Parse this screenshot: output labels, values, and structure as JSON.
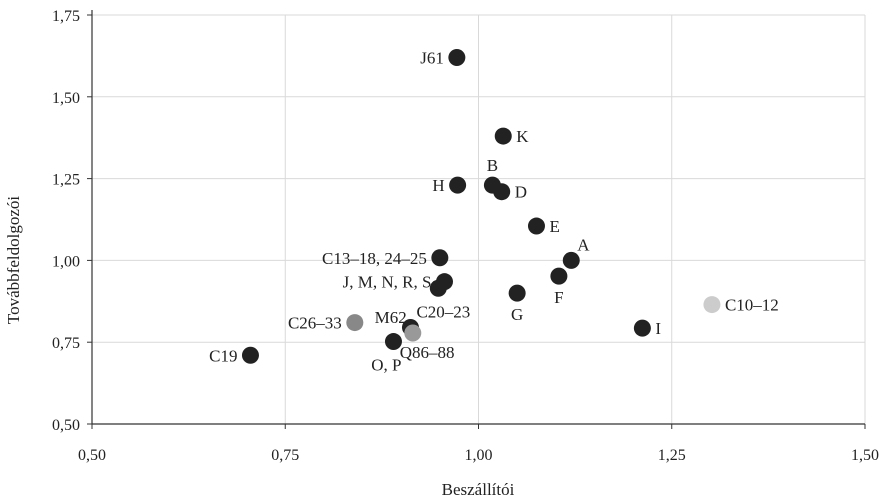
{
  "chart_data": {
    "type": "scatter",
    "xlabel": "Beszállítói",
    "ylabel": "Továbbfeldolgozói",
    "xlim": [
      0.5,
      1.5
    ],
    "ylim": [
      0.5,
      1.75
    ],
    "x_ticks": [
      "0,50",
      "0,75",
      "1,00",
      "1,25",
      "1,50"
    ],
    "y_ticks": [
      "0,50",
      "0,75",
      "1,00",
      "1,25",
      "1,50",
      "1,75"
    ],
    "grid": true,
    "points": [
      {
        "label": "J61",
        "x": 0.972,
        "y": 1.62,
        "color": "#222222",
        "label_pos": "left"
      },
      {
        "label": "K",
        "x": 1.032,
        "y": 1.38,
        "color": "#222222",
        "label_pos": "right"
      },
      {
        "label": "B",
        "x": 1.018,
        "y": 1.23,
        "color": "#222222",
        "label_pos": "above"
      },
      {
        "label": "H",
        "x": 0.973,
        "y": 1.23,
        "color": "#222222",
        "label_pos": "left"
      },
      {
        "label": "D",
        "x": 1.03,
        "y": 1.21,
        "color": "#222222",
        "label_pos": "right"
      },
      {
        "label": "E",
        "x": 1.075,
        "y": 1.105,
        "color": "#222222",
        "label_pos": "right"
      },
      {
        "label": "C13–18, 24–25",
        "x": 0.95,
        "y": 1.008,
        "color": "#222222",
        "label_pos": "left"
      },
      {
        "label": "A",
        "x": 1.12,
        "y": 1.0,
        "color": "#222222",
        "label_pos": "aboveright"
      },
      {
        "label": "J, M, N, R, S",
        "x": 0.956,
        "y": 0.935,
        "color": "#222222",
        "label_pos": "left"
      },
      {
        "label": "",
        "x": 0.948,
        "y": 0.915,
        "color": "#222222",
        "label_pos": "none"
      },
      {
        "label": "F",
        "x": 1.104,
        "y": 0.952,
        "color": "#222222",
        "label_pos": "below"
      },
      {
        "label": "C20–23",
        "x": 0.912,
        "y": 0.795,
        "color": "#222222",
        "label_pos": "aboveright"
      },
      {
        "label": "G",
        "x": 1.05,
        "y": 0.9,
        "color": "#222222",
        "label_pos": "below"
      },
      {
        "label": "C10–12",
        "x": 1.302,
        "y": 0.865,
        "color": "#cccccc",
        "label_pos": "right"
      },
      {
        "label": "I",
        "x": 1.212,
        "y": 0.793,
        "color": "#222222",
        "label_pos": "right"
      },
      {
        "label": "C26–33",
        "x": 0.84,
        "y": 0.81,
        "color": "#888888",
        "label_pos": "left"
      },
      {
        "label": "M62",
        "x": 0.915,
        "y": 0.778,
        "color": "#999999",
        "label_pos": "aboveleft"
      },
      {
        "label": "Q86–88",
        "x": 0.915,
        "y": 0.778,
        "color": "#999999",
        "label_pos": "belowright"
      },
      {
        "label": "O, P",
        "x": 0.89,
        "y": 0.752,
        "color": "#222222",
        "label_pos": "belowleft"
      },
      {
        "label": "C19",
        "x": 0.705,
        "y": 0.71,
        "color": "#222222",
        "label_pos": "left"
      }
    ]
  }
}
